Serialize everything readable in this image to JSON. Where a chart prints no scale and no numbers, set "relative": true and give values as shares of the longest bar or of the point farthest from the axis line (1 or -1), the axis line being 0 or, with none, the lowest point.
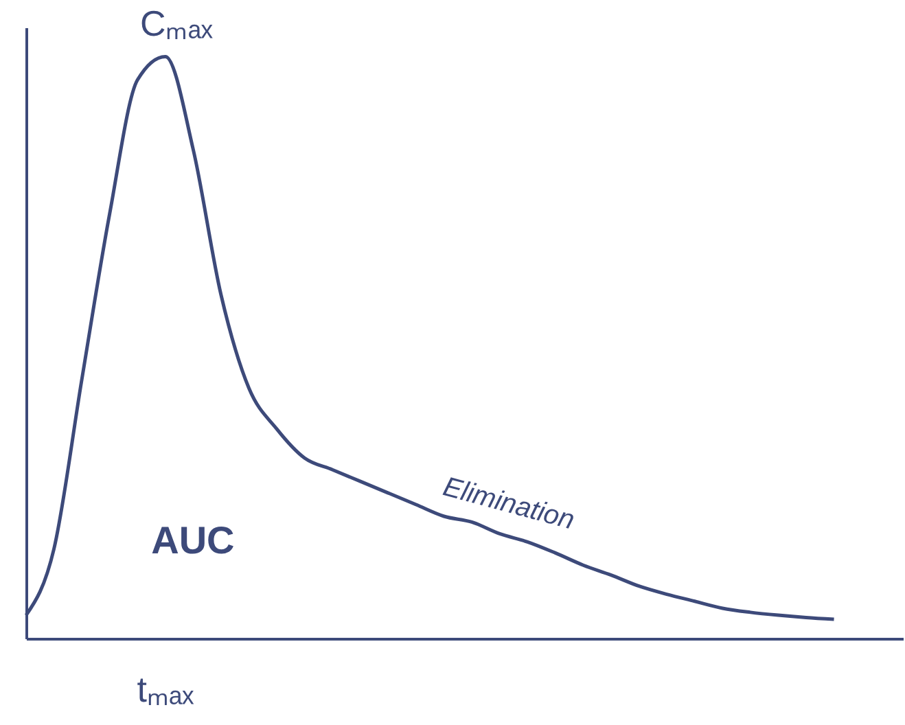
{
  "chart_data": {
    "type": "line",
    "relative": true,
    "color": "#3d4a7a",
    "categories": [
      null,
      null,
      null,
      null,
      null,
      null,
      null,
      null,
      null,
      null,
      null,
      null,
      null,
      null,
      null,
      null,
      null,
      null,
      null,
      null,
      null,
      null,
      null,
      null,
      null,
      null,
      null,
      null,
      null,
      null
    ],
    "values": [
      0.04,
      0.154,
      0.445,
      0.73,
      0.96,
      1.0,
      0.84,
      0.59,
      0.43,
      0.36,
      0.31,
      0.29,
      0.27,
      0.25,
      0.23,
      0.21,
      0.2,
      0.18,
      0.166,
      0.147,
      0.126,
      0.109,
      0.09,
      0.076,
      0.064,
      0.052,
      0.045,
      0.04,
      0.036,
      0.033
    ],
    "annotations": [
      "Cₘₐₓ",
      "tₘₐₓ",
      "AUC",
      "Elimination"
    ],
    "grid": false,
    "marker": "none",
    "line_style": "solid"
  }
}
